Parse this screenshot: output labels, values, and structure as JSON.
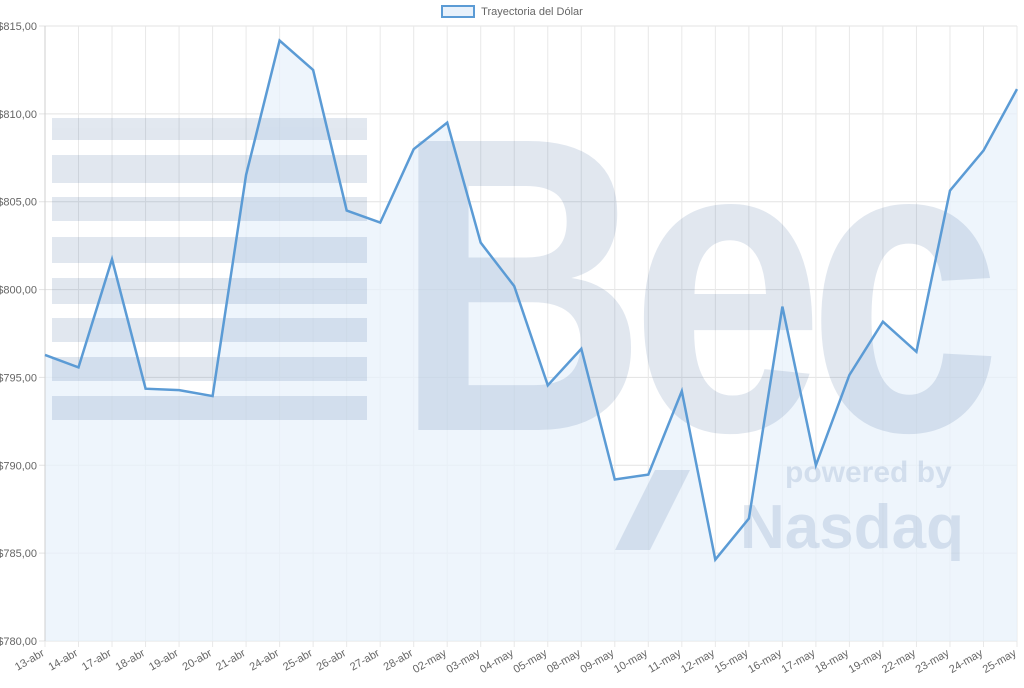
{
  "chart_data": {
    "type": "area",
    "title": "",
    "legend": {
      "position": "top",
      "entries": [
        "Trayectoria del Dólar"
      ]
    },
    "series": [
      {
        "name": "Trayectoria del Dólar",
        "color": "#5b9bd5",
        "fill": "#e8f1fb",
        "values": [
          796.28,
          795.57,
          801.73,
          794.36,
          794.28,
          793.94,
          806.53,
          814.17,
          812.5,
          804.5,
          803.81,
          807.99,
          809.5,
          802.67,
          800.2,
          794.55,
          796.63,
          789.19,
          789.47,
          794.22,
          784.63,
          786.97,
          799.03,
          790.0,
          795.14,
          798.17,
          796.46,
          805.63,
          807.91,
          811.41
        ]
      }
    ],
    "categories": [
      "13-abr",
      "14-abr",
      "17-abr",
      "18-abr",
      "19-abr",
      "20-abr",
      "21-abr",
      "24-abr",
      "25-abr",
      "26-abr",
      "27-abr",
      "28-abr",
      "02-may",
      "03-may",
      "04-may",
      "05-may",
      "08-may",
      "09-may",
      "10-may",
      "11-may",
      "12-may",
      "15-may",
      "16-may",
      "17-may",
      "18-may",
      "19-may",
      "22-may",
      "23-may",
      "24-may",
      "25-may"
    ],
    "xlabel": "",
    "ylabel": "",
    "ylim": [
      780,
      815
    ],
    "yticks": [
      780,
      785,
      790,
      795,
      800,
      805,
      810,
      815
    ],
    "ytick_labels": [
      "$780,00",
      "$785,00",
      "$790,00",
      "$795,00",
      "$800,00",
      "$805,00",
      "$810,00",
      "$815,00"
    ],
    "grid": true
  },
  "legend": {
    "label": "Trayectoria del Dólar"
  },
  "watermark": {
    "main": "Bec",
    "sub1": "powered by",
    "sub2": "Nasdaq"
  }
}
